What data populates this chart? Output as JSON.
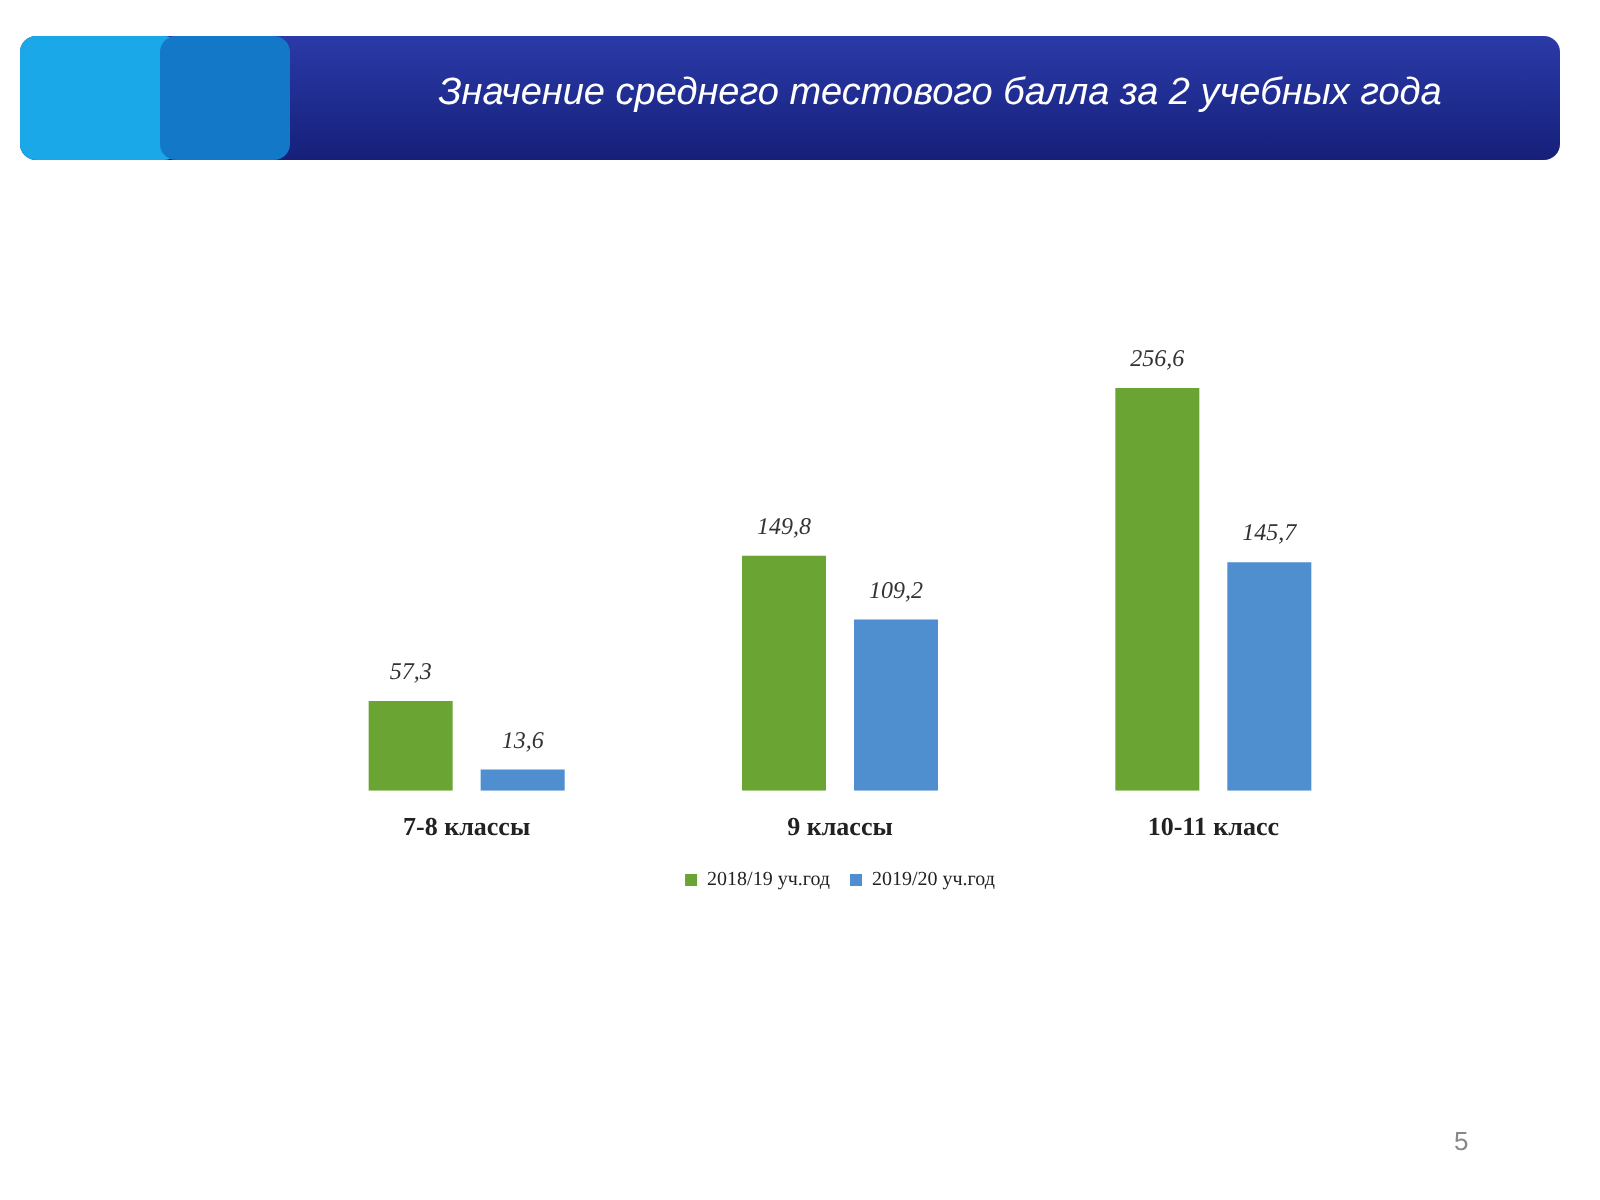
{
  "chart_data": {
    "type": "bar",
    "title": "Значение среднего тестового балла за 2 учебных года",
    "categories": [
      "7-8 классы",
      "9 классы",
      "10-11 класс"
    ],
    "series": [
      {
        "name": "2018/19 уч.год",
        "color": "#6aa534",
        "values": [
          57.3,
          149.8,
          256.6
        ],
        "value_labels": [
          "57,3",
          "149,8",
          "256,6"
        ]
      },
      {
        "name": "2019/20 уч.год",
        "color": "#4f8fd0",
        "values": [
          13.6,
          109.2,
          145.7
        ],
        "value_labels": [
          "13,6",
          "109,2",
          "145,7"
        ]
      }
    ],
    "legend": "bottom",
    "annotations": [
      "5"
    ]
  }
}
